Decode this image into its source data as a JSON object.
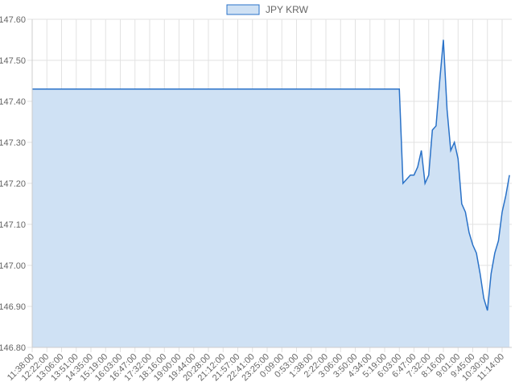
{
  "chart_data": {
    "type": "line",
    "categories": [
      "11:38:00",
      null,
      null,
      null,
      "12:22:00",
      null,
      null,
      null,
      "13:06:00",
      null,
      null,
      null,
      "13:51:00",
      null,
      null,
      null,
      "14:35:00",
      null,
      null,
      null,
      "15:19:00",
      null,
      null,
      null,
      "16:03:00",
      null,
      null,
      null,
      "16:47:00",
      null,
      null,
      null,
      "17:32:00",
      null,
      null,
      null,
      "18:16:00",
      null,
      null,
      null,
      "19:00:00",
      null,
      null,
      null,
      "19:44:00",
      null,
      null,
      null,
      "20:28:00",
      null,
      null,
      null,
      "21:12:00",
      null,
      null,
      null,
      "21:57:00",
      null,
      null,
      null,
      "22:41:00",
      null,
      null,
      null,
      "23:25:00",
      null,
      null,
      null,
      "0:09:00",
      null,
      null,
      null,
      "0:53:00",
      null,
      null,
      null,
      "1:38:00",
      null,
      null,
      null,
      "2:22:00",
      null,
      null,
      null,
      "3:06:00",
      null,
      null,
      null,
      "3:50:00",
      null,
      null,
      null,
      "4:34:00",
      null,
      null,
      null,
      "5:19:00",
      null,
      null,
      null,
      "6:03:00",
      null,
      null,
      null,
      "6:47:00",
      null,
      null,
      null,
      "7:32:00",
      null,
      null,
      null,
      "8:16:00",
      null,
      null,
      null,
      "9:01:00",
      null,
      null,
      null,
      "9:45:00",
      null,
      null,
      null,
      "10:30:00",
      null,
      null,
      null,
      "11:14:00",
      null,
      null
    ],
    "series": [
      {
        "name": "JPY KRW",
        "color": "#2a72c8",
        "fill": "#cfe1f4",
        "values": [
          147.43,
          147.43,
          147.43,
          147.43,
          147.43,
          147.43,
          147.43,
          147.43,
          147.43,
          147.43,
          147.43,
          147.43,
          147.43,
          147.43,
          147.43,
          147.43,
          147.43,
          147.43,
          147.43,
          147.43,
          147.43,
          147.43,
          147.43,
          147.43,
          147.43,
          147.43,
          147.43,
          147.43,
          147.43,
          147.43,
          147.43,
          147.43,
          147.43,
          147.43,
          147.43,
          147.43,
          147.43,
          147.43,
          147.43,
          147.43,
          147.43,
          147.43,
          147.43,
          147.43,
          147.43,
          147.43,
          147.43,
          147.43,
          147.43,
          147.43,
          147.43,
          147.43,
          147.43,
          147.43,
          147.43,
          147.43,
          147.43,
          147.43,
          147.43,
          147.43,
          147.43,
          147.43,
          147.43,
          147.43,
          147.43,
          147.43,
          147.43,
          147.43,
          147.43,
          147.43,
          147.43,
          147.43,
          147.43,
          147.43,
          147.43,
          147.43,
          147.43,
          147.43,
          147.43,
          147.43,
          147.43,
          147.43,
          147.43,
          147.43,
          147.43,
          147.43,
          147.43,
          147.43,
          147.43,
          147.43,
          147.43,
          147.43,
          147.43,
          147.43,
          147.43,
          147.43,
          147.43,
          147.43,
          147.43,
          147.43,
          147.43,
          147.2,
          147.21,
          147.22,
          147.22,
          147.24,
          147.28,
          147.2,
          147.22,
          147.33,
          147.34,
          147.45,
          147.55,
          147.38,
          147.28,
          147.3,
          147.26,
          147.15,
          147.13,
          147.08,
          147.05,
          147.03,
          146.98,
          146.92,
          146.89,
          146.98,
          147.03,
          147.06,
          147.13,
          147.17,
          147.22
        ]
      }
    ],
    "ylim": [
      146.8,
      147.6
    ],
    "yticks": [
      {
        "value": 146.8,
        "label": "146.80"
      },
      {
        "value": 146.9,
        "label": "146.90"
      },
      {
        "value": 147.0,
        "label": "147.00"
      },
      {
        "value": 147.1,
        "label": "147.10"
      },
      {
        "value": 147.2,
        "label": "147.20"
      },
      {
        "value": 147.3,
        "label": "147.30"
      },
      {
        "value": 147.4,
        "label": "147.40"
      },
      {
        "value": 147.5,
        "label": "147.50"
      },
      {
        "value": 147.6,
        "label": "147.60"
      }
    ],
    "grid": true,
    "legend": "top"
  }
}
